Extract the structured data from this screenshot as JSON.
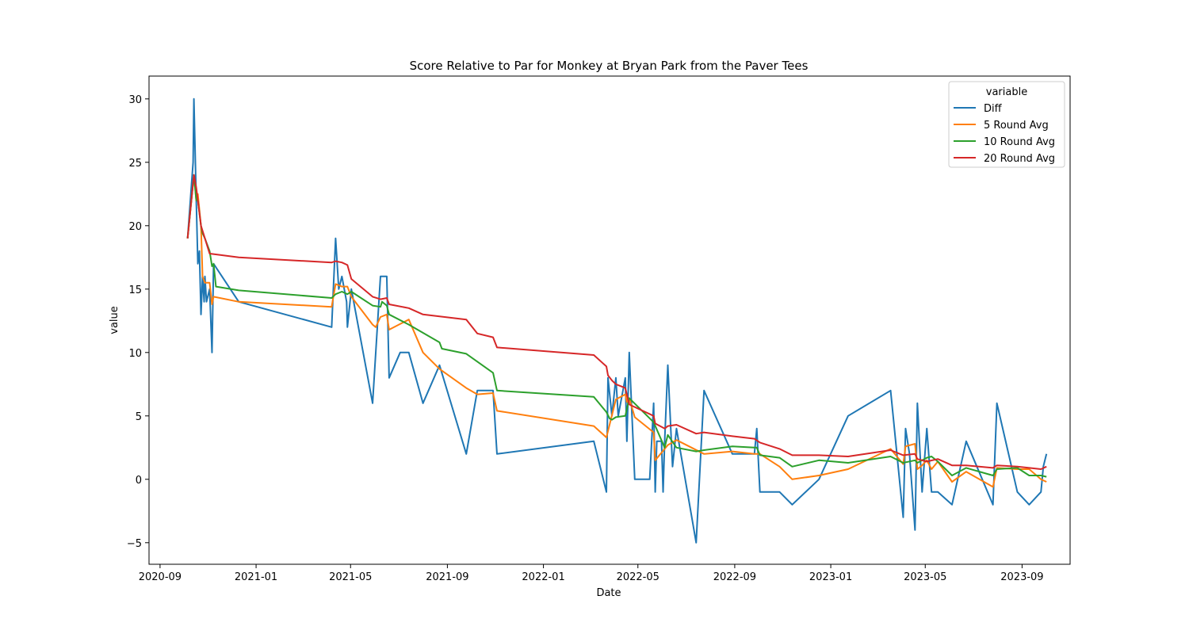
{
  "chart_data": {
    "type": "line",
    "title": "Score Relative to Par for Monkey at Bryan Park from the Paver Tees",
    "xlabel": "Date",
    "ylabel": "value",
    "x_type": "date",
    "xlim": [
      "2020-08-18",
      "2023-11-01"
    ],
    "ylim": [
      -6.7,
      31.8
    ],
    "x_ticks": [
      "2020-09-01",
      "2021-01-01",
      "2021-05-01",
      "2021-09-01",
      "2022-01-01",
      "2022-05-01",
      "2022-09-01",
      "2023-01-01",
      "2023-05-01",
      "2023-09-01"
    ],
    "x_tick_labels": [
      "2020-09",
      "2021-01",
      "2021-05",
      "2021-09",
      "2022-01",
      "2022-05",
      "2022-09",
      "2023-01",
      "2023-05",
      "2023-09"
    ],
    "y_ticks": [
      -5,
      0,
      5,
      10,
      15,
      20,
      25,
      30
    ],
    "y_tick_labels": [
      "−5",
      "0",
      "5",
      "10",
      "15",
      "20",
      "25",
      "30"
    ],
    "grid": false,
    "legend": {
      "title": "variable",
      "placement": "upper-right"
    },
    "series": [
      {
        "name": "Diff",
        "color": "#1f77b4",
        "points": [
          [
            "2020-10-06",
            19
          ],
          [
            "2020-10-13",
            25
          ],
          [
            "2020-10-14",
            30
          ],
          [
            "2020-10-17",
            22
          ],
          [
            "2020-10-19",
            17
          ],
          [
            "2020-10-21",
            18
          ],
          [
            "2020-10-23",
            13
          ],
          [
            "2020-10-25",
            16
          ],
          [
            "2020-10-27",
            14
          ],
          [
            "2020-10-28",
            16
          ],
          [
            "2020-10-30",
            14
          ],
          [
            "2020-11-03",
            15
          ],
          [
            "2020-11-06",
            10
          ],
          [
            "2020-11-08",
            17
          ],
          [
            "2020-12-10",
            14
          ],
          [
            "2021-04-07",
            12
          ],
          [
            "2021-04-12",
            19
          ],
          [
            "2021-04-16",
            15
          ],
          [
            "2021-04-20",
            16
          ],
          [
            "2021-04-26",
            14
          ],
          [
            "2021-04-27",
            12
          ],
          [
            "2021-05-02",
            15
          ],
          [
            "2021-05-29",
            6
          ],
          [
            "2021-06-08",
            16
          ],
          [
            "2021-06-16",
            16
          ],
          [
            "2021-06-19",
            8
          ],
          [
            "2021-07-03",
            10
          ],
          [
            "2021-07-14",
            10
          ],
          [
            "2021-08-01",
            6
          ],
          [
            "2021-08-22",
            9
          ],
          [
            "2021-09-25",
            2
          ],
          [
            "2021-10-09",
            7
          ],
          [
            "2021-10-29",
            7
          ],
          [
            "2021-11-03",
            2
          ],
          [
            "2022-03-06",
            3
          ],
          [
            "2022-03-22",
            -1
          ],
          [
            "2022-03-24",
            8
          ],
          [
            "2022-03-29",
            5
          ],
          [
            "2022-04-03",
            8
          ],
          [
            "2022-04-06",
            5
          ],
          [
            "2022-04-15",
            8
          ],
          [
            "2022-04-17",
            3
          ],
          [
            "2022-04-20",
            10
          ],
          [
            "2022-04-27",
            0
          ],
          [
            "2022-05-06",
            0
          ],
          [
            "2022-05-16",
            0
          ],
          [
            "2022-05-21",
            6
          ],
          [
            "2022-05-23",
            -1
          ],
          [
            "2022-05-25",
            3
          ],
          [
            "2022-05-31",
            3
          ],
          [
            "2022-06-02",
            -1
          ],
          [
            "2022-06-04",
            3
          ],
          [
            "2022-06-08",
            9
          ],
          [
            "2022-06-14",
            1
          ],
          [
            "2022-06-19",
            4
          ],
          [
            "2022-07-14",
            -5
          ],
          [
            "2022-07-24",
            7
          ],
          [
            "2022-08-29",
            2
          ],
          [
            "2022-09-26",
            2
          ],
          [
            "2022-09-29",
            4
          ],
          [
            "2022-10-03",
            -1
          ],
          [
            "2022-10-28",
            -1
          ],
          [
            "2022-11-13",
            -2
          ],
          [
            "2022-12-17",
            0
          ],
          [
            "2023-01-23",
            5
          ],
          [
            "2023-03-18",
            7
          ],
          [
            "2023-04-03",
            -3
          ],
          [
            "2023-04-06",
            4
          ],
          [
            "2023-04-11",
            2
          ],
          [
            "2023-04-18",
            -4
          ],
          [
            "2023-04-21",
            6
          ],
          [
            "2023-04-27",
            -1
          ],
          [
            "2023-05-03",
            4
          ],
          [
            "2023-05-09",
            -1
          ],
          [
            "2023-05-17",
            -1
          ],
          [
            "2023-06-04",
            -2
          ],
          [
            "2023-06-22",
            3
          ],
          [
            "2023-07-26",
            -2
          ],
          [
            "2023-07-31",
            6
          ],
          [
            "2023-08-26",
            -1
          ],
          [
            "2023-09-10",
            -2
          ],
          [
            "2023-09-25",
            -1
          ],
          [
            "2023-09-28",
            1
          ],
          [
            "2023-10-02",
            2
          ]
        ]
      },
      {
        "name": "5 Round Avg",
        "color": "#ff7f0e",
        "points": [
          [
            "2020-10-06",
            19
          ],
          [
            "2020-10-14",
            24
          ],
          [
            "2020-10-17",
            22
          ],
          [
            "2020-10-19",
            22.5
          ],
          [
            "2020-10-23",
            20
          ],
          [
            "2020-10-25",
            16
          ],
          [
            "2020-10-28",
            15.5
          ],
          [
            "2020-11-03",
            15.5
          ],
          [
            "2020-11-06",
            13.8
          ],
          [
            "2020-11-08",
            14.4
          ],
          [
            "2020-12-10",
            14
          ],
          [
            "2021-04-07",
            13.6
          ],
          [
            "2021-04-12",
            15.4
          ],
          [
            "2021-04-20",
            15.2
          ],
          [
            "2021-04-27",
            15.2
          ],
          [
            "2021-05-02",
            14.4
          ],
          [
            "2021-05-29",
            12.2
          ],
          [
            "2021-06-02",
            12
          ],
          [
            "2021-06-08",
            12.8
          ],
          [
            "2021-06-16",
            13
          ],
          [
            "2021-06-19",
            11.8
          ],
          [
            "2021-07-14",
            12.6
          ],
          [
            "2021-08-01",
            10
          ],
          [
            "2021-08-22",
            8.7
          ],
          [
            "2021-09-25",
            7.2
          ],
          [
            "2021-10-09",
            6.7
          ],
          [
            "2021-10-29",
            6.8
          ],
          [
            "2021-11-03",
            5.4
          ],
          [
            "2022-03-06",
            4.2
          ],
          [
            "2022-03-22",
            3.3
          ],
          [
            "2022-04-03",
            6.3
          ],
          [
            "2022-04-15",
            6.7
          ],
          [
            "2022-04-17",
            6.1
          ],
          [
            "2022-04-20",
            6.4
          ],
          [
            "2022-04-27",
            4.9
          ],
          [
            "2022-05-21",
            3.7
          ],
          [
            "2022-05-23",
            1.5
          ],
          [
            "2022-06-08",
            2.7
          ],
          [
            "2022-06-19",
            3.1
          ],
          [
            "2022-07-24",
            2
          ],
          [
            "2022-08-29",
            2.2
          ],
          [
            "2022-09-26",
            2.0
          ],
          [
            "2022-10-03",
            2.0
          ],
          [
            "2022-10-28",
            1.0
          ],
          [
            "2022-11-13",
            0
          ],
          [
            "2022-12-17",
            0.3
          ],
          [
            "2023-01-23",
            0.8
          ],
          [
            "2023-03-18",
            2.4
          ],
          [
            "2023-04-03",
            1.2
          ],
          [
            "2023-04-06",
            2.6
          ],
          [
            "2023-04-18",
            2.8
          ],
          [
            "2023-04-21",
            0.8
          ],
          [
            "2023-04-27",
            1.1
          ],
          [
            "2023-05-03",
            1.5
          ],
          [
            "2023-05-09",
            0.8
          ],
          [
            "2023-05-17",
            1.4
          ],
          [
            "2023-06-04",
            -0.2
          ],
          [
            "2023-06-22",
            0.6
          ],
          [
            "2023-07-26",
            -0.6
          ],
          [
            "2023-07-31",
            0.9
          ],
          [
            "2023-08-26",
            0.8
          ],
          [
            "2023-09-10",
            0.8
          ],
          [
            "2023-09-25",
            0.0
          ],
          [
            "2023-10-02",
            -0.2
          ]
        ]
      },
      {
        "name": "10 Round Avg",
        "color": "#2ca02c",
        "points": [
          [
            "2020-10-06",
            19
          ],
          [
            "2020-10-14",
            24
          ],
          [
            "2020-10-17",
            22
          ],
          [
            "2020-10-19",
            22
          ],
          [
            "2020-10-23",
            20
          ],
          [
            "2020-10-25",
            19.4
          ],
          [
            "2020-10-28",
            19
          ],
          [
            "2020-11-03",
            18
          ],
          [
            "2020-11-06",
            16.8
          ],
          [
            "2020-11-08",
            17
          ],
          [
            "2020-11-11",
            15.2
          ],
          [
            "2020-12-10",
            14.9
          ],
          [
            "2021-04-07",
            14.3
          ],
          [
            "2021-04-12",
            14.6
          ],
          [
            "2021-04-20",
            14.8
          ],
          [
            "2021-04-27",
            14.6
          ],
          [
            "2021-05-02",
            14.8
          ],
          [
            "2021-05-29",
            13.7
          ],
          [
            "2021-06-08",
            13.6
          ],
          [
            "2021-06-10",
            14
          ],
          [
            "2021-06-16",
            13.7
          ],
          [
            "2021-06-19",
            13
          ],
          [
            "2021-07-14",
            12.2
          ],
          [
            "2021-08-22",
            10.8
          ],
          [
            "2021-08-25",
            10.3
          ],
          [
            "2021-09-25",
            9.9
          ],
          [
            "2021-10-29",
            8.4
          ],
          [
            "2021-11-03",
            7
          ],
          [
            "2022-03-06",
            6.5
          ],
          [
            "2022-03-22",
            5.3
          ],
          [
            "2022-03-26",
            4.8
          ],
          [
            "2022-03-29",
            4.7
          ],
          [
            "2022-04-03",
            4.9
          ],
          [
            "2022-04-15",
            5.0
          ],
          [
            "2022-04-20",
            6.4
          ],
          [
            "2022-05-21",
            4.5
          ],
          [
            "2022-06-04",
            2.5
          ],
          [
            "2022-06-08",
            3.5
          ],
          [
            "2022-06-19",
            2.5
          ],
          [
            "2022-07-14",
            2.2
          ],
          [
            "2022-07-24",
            2.3
          ],
          [
            "2022-08-29",
            2.6
          ],
          [
            "2022-09-26",
            2.5
          ],
          [
            "2022-09-29",
            2.5
          ],
          [
            "2022-10-03",
            1.9
          ],
          [
            "2022-10-28",
            1.7
          ],
          [
            "2022-11-13",
            1.0
          ],
          [
            "2022-12-17",
            1.5
          ],
          [
            "2023-01-23",
            1.3
          ],
          [
            "2023-03-18",
            1.8
          ],
          [
            "2023-04-03",
            1.3
          ],
          [
            "2023-04-18",
            1.5
          ],
          [
            "2023-04-21",
            1.3
          ],
          [
            "2023-05-03",
            1.7
          ],
          [
            "2023-05-09",
            1.8
          ],
          [
            "2023-05-17",
            1.4
          ],
          [
            "2023-06-04",
            0.3
          ],
          [
            "2023-06-22",
            0.9
          ],
          [
            "2023-07-26",
            0.3
          ],
          [
            "2023-07-31",
            0.8
          ],
          [
            "2023-08-26",
            0.9
          ],
          [
            "2023-09-10",
            0.3
          ],
          [
            "2023-09-25",
            0.3
          ],
          [
            "2023-10-02",
            0.2
          ]
        ]
      },
      {
        "name": "20 Round Avg",
        "color": "#d62728",
        "points": [
          [
            "2020-10-06",
            19
          ],
          [
            "2020-10-14",
            24
          ],
          [
            "2020-10-17",
            23
          ],
          [
            "2020-10-19",
            22
          ],
          [
            "2020-10-23",
            20
          ],
          [
            "2020-10-28",
            19
          ],
          [
            "2020-11-03",
            17.8
          ],
          [
            "2020-12-10",
            17.5
          ],
          [
            "2021-04-07",
            17.1
          ],
          [
            "2021-04-12",
            17.2
          ],
          [
            "2021-04-20",
            17.1
          ],
          [
            "2021-04-27",
            16.9
          ],
          [
            "2021-05-02",
            15.8
          ],
          [
            "2021-05-29",
            14.4
          ],
          [
            "2021-06-08",
            14.2
          ],
          [
            "2021-06-16",
            14.3
          ],
          [
            "2021-06-19",
            13.8
          ],
          [
            "2021-07-14",
            13.5
          ],
          [
            "2021-08-01",
            13.0
          ],
          [
            "2021-09-25",
            12.6
          ],
          [
            "2021-10-09",
            11.5
          ],
          [
            "2021-10-29",
            11.2
          ],
          [
            "2021-11-03",
            10.4
          ],
          [
            "2022-03-06",
            9.8
          ],
          [
            "2022-03-22",
            8.9
          ],
          [
            "2022-03-24",
            8.2
          ],
          [
            "2022-03-29",
            7.8
          ],
          [
            "2022-04-03",
            7.5
          ],
          [
            "2022-04-15",
            7.2
          ],
          [
            "2022-04-20",
            5.9
          ],
          [
            "2022-05-21",
            5.0
          ],
          [
            "2022-05-23",
            4.4
          ],
          [
            "2022-06-04",
            4.0
          ],
          [
            "2022-06-08",
            4.2
          ],
          [
            "2022-06-19",
            4.3
          ],
          [
            "2022-07-14",
            3.6
          ],
          [
            "2022-07-24",
            3.7
          ],
          [
            "2022-08-29",
            3.4
          ],
          [
            "2022-09-26",
            3.2
          ],
          [
            "2022-10-03",
            2.9
          ],
          [
            "2022-10-28",
            2.4
          ],
          [
            "2022-11-13",
            1.9
          ],
          [
            "2022-12-17",
            1.9
          ],
          [
            "2023-01-23",
            1.8
          ],
          [
            "2023-03-18",
            2.3
          ],
          [
            "2023-04-03",
            1.9
          ],
          [
            "2023-04-18",
            2.0
          ],
          [
            "2023-04-21",
            1.6
          ],
          [
            "2023-04-27",
            1.5
          ],
          [
            "2023-05-03",
            1.4
          ],
          [
            "2023-05-17",
            1.6
          ],
          [
            "2023-06-04",
            1.1
          ],
          [
            "2023-06-22",
            1.1
          ],
          [
            "2023-07-26",
            0.9
          ],
          [
            "2023-07-31",
            1.1
          ],
          [
            "2023-08-26",
            1.0
          ],
          [
            "2023-09-10",
            0.9
          ],
          [
            "2023-09-25",
            0.8
          ],
          [
            "2023-10-02",
            1.0
          ]
        ]
      }
    ]
  }
}
